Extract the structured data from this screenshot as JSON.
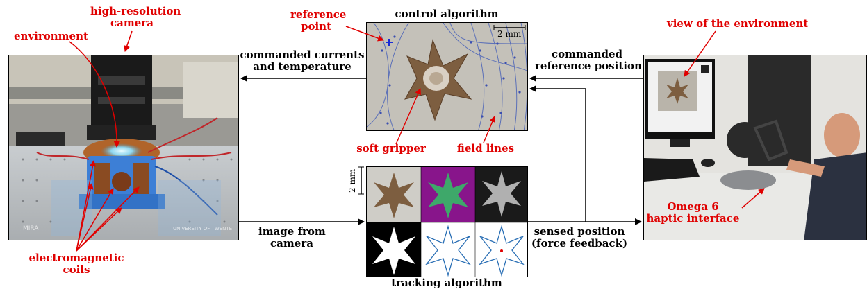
{
  "labels": {
    "high_resolution_camera": [
      "high-resolution",
      "camera"
    ],
    "environment": "environment",
    "reference_point": [
      "reference",
      "point"
    ],
    "control_algorithm": "control algorithm",
    "scale_bar": "2 mm",
    "view_of_environment": "view of the environment",
    "commanded_currents": [
      "commanded currents",
      "and temperature"
    ],
    "commanded_reference": [
      "commanded",
      "reference position"
    ],
    "soft_gripper": "soft gripper",
    "field_lines": "field lines",
    "image_from_camera": [
      "image from",
      "camera"
    ],
    "sensed_position": [
      "sensed position",
      "(force feedback)"
    ],
    "omega6": [
      "Omega 6",
      "haptic interface"
    ],
    "electromagnetic_coils": [
      "electromagnetic",
      "coils"
    ],
    "tracking_algorithm": "tracking algorithm",
    "tracking_scale": "2 mm",
    "photo_mira": "MIRA",
    "photo_university": "UNIVERSITY OF TWENTE"
  },
  "colors": {
    "annotation_red": "#e00000",
    "field_line_blue": "#5a6fb8",
    "reference_point_blue": "#1a2bd8",
    "contour_blue": "#2a6fb5"
  }
}
